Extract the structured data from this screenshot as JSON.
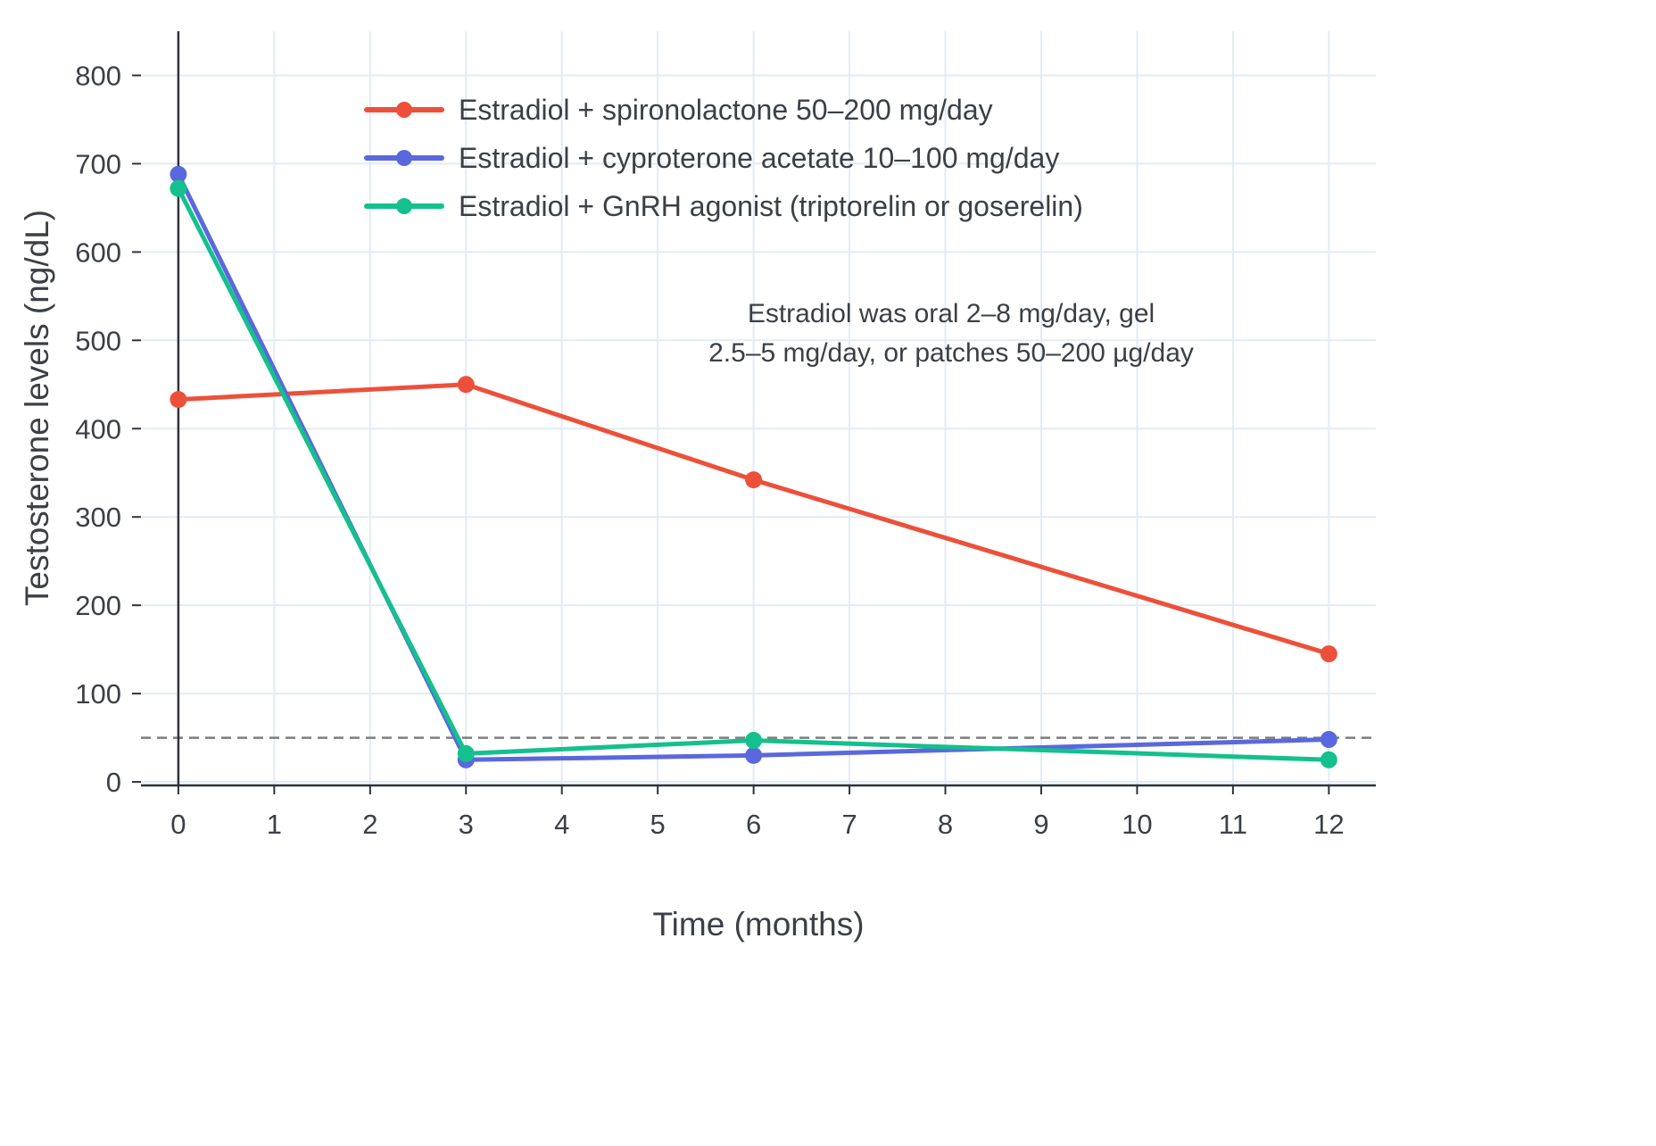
{
  "chart_data": {
    "type": "line",
    "x": [
      0,
      3,
      6,
      12
    ],
    "series": [
      {
        "name": "Estradiol + spironolactone 50–200 mg/day",
        "color": "#ed503a",
        "values": [
          433,
          450,
          342,
          145
        ]
      },
      {
        "name": "Estradiol + cyproterone acetate 10–100 mg/day",
        "color": "#5a68de",
        "values": [
          688,
          25,
          30,
          48
        ]
      },
      {
        "name": "Estradiol + GnRH agonist (triptorelin or goserelin)",
        "color": "#14c08d",
        "values": [
          672,
          32,
          47,
          25
        ]
      }
    ],
    "title": "",
    "xlabel": "Time (months)",
    "ylabel": "Testosterone levels (ng/dL)",
    "xticks": [
      0,
      1,
      2,
      3,
      4,
      5,
      6,
      7,
      8,
      9,
      10,
      11,
      12
    ],
    "yticks": [
      0,
      100,
      200,
      300,
      400,
      500,
      600,
      700,
      800
    ],
    "xlim": [
      -0.39,
      12.49
    ],
    "ylim": [
      -4,
      850
    ],
    "grid": true,
    "legend_position": "inside-top-left",
    "reference_line": {
      "y": 50,
      "style": "dashed",
      "color": "#7d7d7d"
    },
    "annotation": {
      "line1": "Estradiol was oral 2–8 mg/day, gel",
      "line2": "2.5–5 mg/day, or patches 50–200 µg/day"
    }
  },
  "styles": {
    "grid_color": "#e3ebf6",
    "axis_color": "#2f3338",
    "text_color": "#3b4046",
    "background": "#ffffff"
  }
}
